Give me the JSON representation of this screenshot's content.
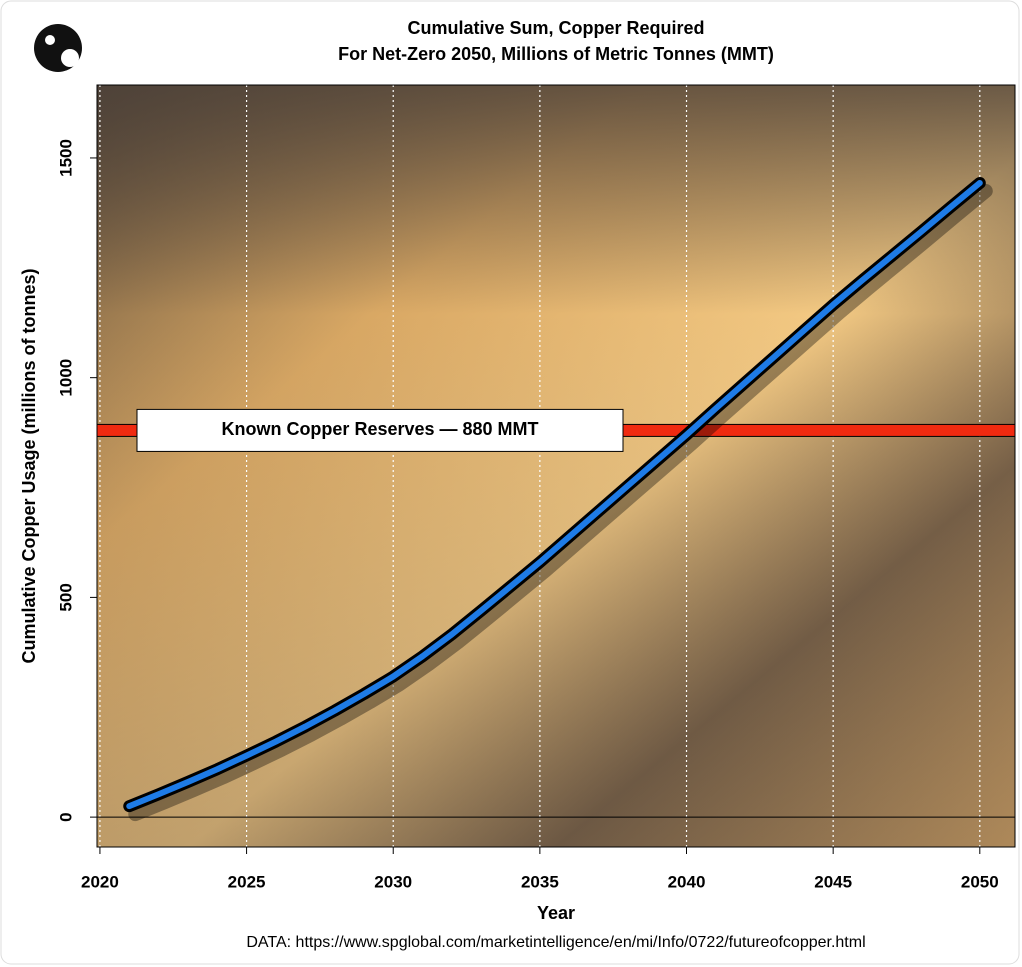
{
  "chart_data": {
    "type": "line",
    "title": [
      "Cumulative Sum, Copper Required",
      "For Net-Zero 2050, Millions of Metric Tonnes (MMT)"
    ],
    "x_label": "Year",
    "y_label": "Cumulative Copper Usage (millions of tonnes)",
    "source": "DATA: https://www.spglobal.com/marketintelligence/en/mi/Info/0722/futureofcopper.html",
    "x": [
      2021,
      2022,
      2023,
      2024,
      2025,
      2026,
      2027,
      2028,
      2029,
      2030,
      2031,
      2032,
      2033,
      2034,
      2035,
      2036,
      2037,
      2038,
      2039,
      2040,
      2041,
      2042,
      2043,
      2044,
      2045,
      2046,
      2047,
      2048,
      2049,
      2050
    ],
    "series": [
      {
        "color": "#1e7be6",
        "values": [
          25,
          52,
          80,
          109,
          140,
          172,
          206,
          242,
          280,
          320,
          366,
          416,
          470,
          525,
          580,
          638,
          696,
          754,
          812,
          870,
          930,
          989,
          1048,
          1107,
          1166,
          1222,
          1277,
          1332,
          1388,
          1443
        ]
      }
    ],
    "reference_line": {
      "value": 880,
      "label": "Known Copper Reserves — 880 MMT",
      "color": "#f02a10"
    },
    "xlim": [
      2019.9,
      2051.2
    ],
    "xticks": [
      2020,
      2025,
      2030,
      2035,
      2040,
      2045,
      2050
    ],
    "ylim": [
      -68,
      1666
    ],
    "yticks": [
      0,
      500,
      1000,
      1500
    ],
    "grid": "x",
    "zero_line": true
  }
}
